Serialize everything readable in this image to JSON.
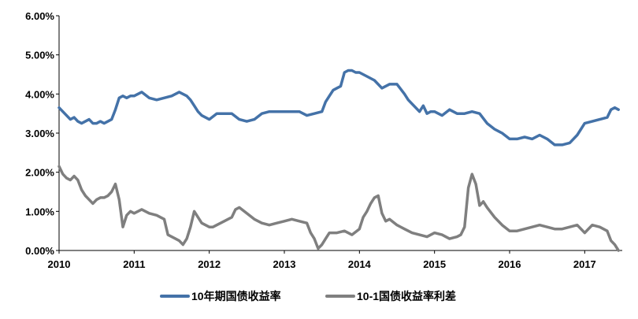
{
  "chart_data": {
    "type": "line",
    "title": "",
    "xlabel": "",
    "ylabel": "",
    "x_ticks": [
      "2010",
      "2011",
      "2012",
      "2013",
      "2014",
      "2015",
      "2016",
      "2017"
    ],
    "y_ticks": [
      "0.00%",
      "1.00%",
      "2.00%",
      "3.00%",
      "4.00%",
      "5.00%",
      "6.00%"
    ],
    "ylim": [
      0,
      6
    ],
    "xlim": [
      2010,
      2017.5
    ],
    "grid": false,
    "legend_position": "bottom",
    "series": [
      {
        "name": "10年期国债收益率",
        "color": "#4472a8",
        "x": [
          2010.0,
          2010.05,
          2010.1,
          2010.15,
          2010.2,
          2010.25,
          2010.3,
          2010.35,
          2010.4,
          2010.45,
          2010.5,
          2010.55,
          2010.6,
          2010.65,
          2010.7,
          2010.75,
          2010.8,
          2010.85,
          2010.9,
          2010.95,
          2011.0,
          2011.1,
          2011.2,
          2011.3,
          2011.4,
          2011.5,
          2011.6,
          2011.7,
          2011.75,
          2011.8,
          2011.85,
          2011.9,
          2012.0,
          2012.1,
          2012.2,
          2012.3,
          2012.4,
          2012.5,
          2012.6,
          2012.7,
          2012.8,
          2012.9,
          2013.0,
          2013.1,
          2013.2,
          2013.3,
          2013.4,
          2013.5,
          2013.55,
          2013.6,
          2013.65,
          2013.7,
          2013.75,
          2013.8,
          2013.85,
          2013.9,
          2013.95,
          2014.0,
          2014.1,
          2014.2,
          2014.3,
          2014.35,
          2014.4,
          2014.5,
          2014.6,
          2014.65,
          2014.7,
          2014.75,
          2014.8,
          2014.85,
          2014.9,
          2014.95,
          2015.0,
          2015.1,
          2015.2,
          2015.3,
          2015.4,
          2015.5,
          2015.6,
          2015.7,
          2015.8,
          2015.9,
          2016.0,
          2016.1,
          2016.2,
          2016.3,
          2016.4,
          2016.5,
          2016.6,
          2016.7,
          2016.8,
          2016.9,
          2017.0,
          2017.1,
          2017.2,
          2017.3,
          2017.35,
          2017.4,
          2017.45
        ],
        "values": [
          3.65,
          3.55,
          3.45,
          3.35,
          3.4,
          3.3,
          3.25,
          3.3,
          3.35,
          3.25,
          3.25,
          3.3,
          3.25,
          3.3,
          3.35,
          3.6,
          3.9,
          3.95,
          3.9,
          3.95,
          3.95,
          4.05,
          3.9,
          3.85,
          3.9,
          3.95,
          4.05,
          3.95,
          3.85,
          3.7,
          3.55,
          3.45,
          3.35,
          3.5,
          3.5,
          3.5,
          3.35,
          3.3,
          3.35,
          3.5,
          3.55,
          3.55,
          3.55,
          3.55,
          3.55,
          3.45,
          3.5,
          3.55,
          3.8,
          3.95,
          4.1,
          4.15,
          4.2,
          4.55,
          4.6,
          4.6,
          4.55,
          4.55,
          4.45,
          4.35,
          4.15,
          4.2,
          4.25,
          4.25,
          4.0,
          3.85,
          3.75,
          3.65,
          3.55,
          3.7,
          3.5,
          3.55,
          3.55,
          3.45,
          3.6,
          3.5,
          3.5,
          3.55,
          3.5,
          3.25,
          3.1,
          3.0,
          2.85,
          2.85,
          2.9,
          2.85,
          2.95,
          2.85,
          2.7,
          2.7,
          2.75,
          2.95,
          3.25,
          3.3,
          3.35,
          3.4,
          3.6,
          3.65,
          3.6
        ]
      },
      {
        "name": "10-1国债收益率利差",
        "color": "#7f7f7f",
        "x": [
          2010.0,
          2010.05,
          2010.1,
          2010.15,
          2010.2,
          2010.25,
          2010.3,
          2010.35,
          2010.4,
          2010.45,
          2010.5,
          2010.55,
          2010.6,
          2010.65,
          2010.7,
          2010.75,
          2010.8,
          2010.85,
          2010.9,
          2010.95,
          2011.0,
          2011.1,
          2011.2,
          2011.3,
          2011.4,
          2011.45,
          2011.5,
          2011.55,
          2011.6,
          2011.65,
          2011.7,
          2011.75,
          2011.8,
          2011.85,
          2011.9,
          2011.95,
          2012.0,
          2012.05,
          2012.1,
          2012.2,
          2012.3,
          2012.35,
          2012.4,
          2012.5,
          2012.6,
          2012.7,
          2012.8,
          2012.9,
          2013.0,
          2013.1,
          2013.2,
          2013.3,
          2013.35,
          2013.4,
          2013.45,
          2013.5,
          2013.55,
          2013.6,
          2013.7,
          2013.8,
          2013.9,
          2014.0,
          2014.05,
          2014.1,
          2014.15,
          2014.2,
          2014.25,
          2014.3,
          2014.35,
          2014.4,
          2014.5,
          2014.6,
          2014.7,
          2014.8,
          2014.9,
          2015.0,
          2015.1,
          2015.2,
          2015.3,
          2015.35,
          2015.4,
          2015.45,
          2015.5,
          2015.55,
          2015.6,
          2015.65,
          2015.7,
          2015.8,
          2015.9,
          2016.0,
          2016.1,
          2016.2,
          2016.3,
          2016.4,
          2016.5,
          2016.6,
          2016.7,
          2016.8,
          2016.9,
          2017.0,
          2017.1,
          2017.2,
          2017.3,
          2017.35,
          2017.4,
          2017.45
        ],
        "values": [
          2.15,
          1.95,
          1.85,
          1.8,
          1.9,
          1.8,
          1.55,
          1.4,
          1.3,
          1.2,
          1.3,
          1.35,
          1.35,
          1.4,
          1.5,
          1.7,
          1.3,
          0.6,
          0.9,
          1.0,
          0.95,
          1.05,
          0.95,
          0.9,
          0.8,
          0.4,
          0.35,
          0.3,
          0.25,
          0.15,
          0.3,
          0.6,
          1.0,
          0.85,
          0.7,
          0.65,
          0.6,
          0.6,
          0.65,
          0.75,
          0.85,
          1.05,
          1.1,
          0.95,
          0.8,
          0.7,
          0.65,
          0.7,
          0.75,
          0.8,
          0.75,
          0.7,
          0.45,
          0.3,
          0.05,
          0.15,
          0.3,
          0.45,
          0.45,
          0.5,
          0.4,
          0.55,
          0.85,
          1.0,
          1.2,
          1.35,
          1.4,
          0.95,
          0.75,
          0.8,
          0.65,
          0.55,
          0.45,
          0.4,
          0.35,
          0.45,
          0.4,
          0.3,
          0.35,
          0.4,
          0.6,
          1.6,
          1.95,
          1.7,
          1.15,
          1.25,
          1.1,
          0.85,
          0.65,
          0.5,
          0.5,
          0.55,
          0.6,
          0.65,
          0.6,
          0.55,
          0.55,
          0.6,
          0.65,
          0.45,
          0.65,
          0.6,
          0.5,
          0.25,
          0.15,
          0.0
        ]
      }
    ]
  }
}
